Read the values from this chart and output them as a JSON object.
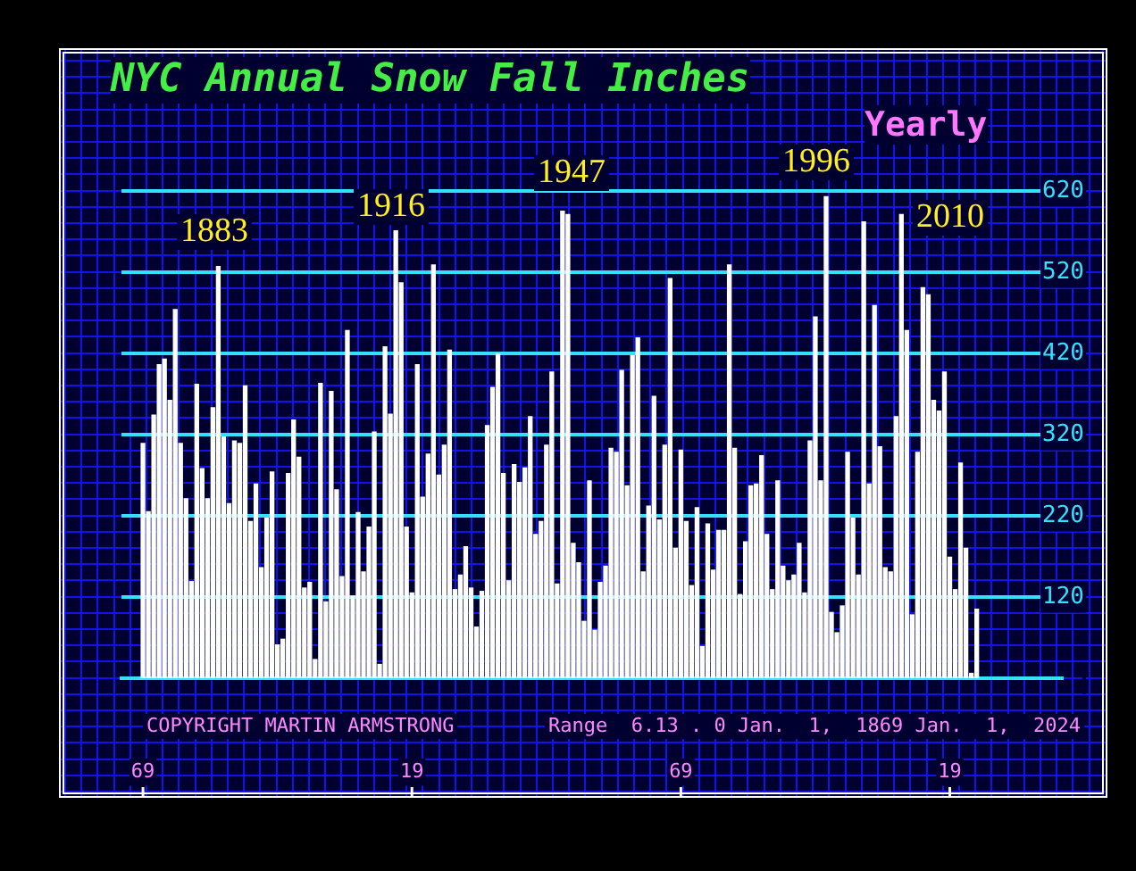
{
  "chart_data": {
    "type": "bar",
    "title": "NYC Annual Snow Fall Inches",
    "subtitle": "Yearly",
    "x": [
      1869,
      1870,
      1871,
      1872,
      1873,
      1874,
      1875,
      1876,
      1877,
      1878,
      1879,
      1880,
      1881,
      1882,
      1883,
      1884,
      1885,
      1886,
      1887,
      1888,
      1889,
      1890,
      1891,
      1892,
      1893,
      1894,
      1895,
      1896,
      1897,
      1898,
      1899,
      1900,
      1901,
      1902,
      1903,
      1904,
      1905,
      1906,
      1907,
      1908,
      1909,
      1910,
      1911,
      1912,
      1913,
      1914,
      1915,
      1916,
      1917,
      1918,
      1919,
      1920,
      1921,
      1922,
      1923,
      1924,
      1925,
      1926,
      1927,
      1928,
      1929,
      1930,
      1931,
      1932,
      1933,
      1934,
      1935,
      1936,
      1937,
      1938,
      1939,
      1940,
      1941,
      1942,
      1943,
      1944,
      1945,
      1946,
      1947,
      1948,
      1949,
      1950,
      1951,
      1952,
      1953,
      1954,
      1955,
      1956,
      1957,
      1958,
      1959,
      1960,
      1961,
      1962,
      1963,
      1964,
      1965,
      1966,
      1967,
      1968,
      1969,
      1970,
      1971,
      1972,
      1973,
      1974,
      1975,
      1976,
      1977,
      1978,
      1979,
      1980,
      1981,
      1982,
      1983,
      1984,
      1985,
      1986,
      1987,
      1988,
      1989,
      1990,
      1991,
      1992,
      1993,
      1994,
      1995,
      1996,
      1997,
      1998,
      1999,
      2000,
      2001,
      2002,
      2003,
      2004,
      2005,
      2006,
      2007,
      2008,
      2009,
      2010,
      2011,
      2012,
      2013,
      2014,
      2015,
      2016,
      2017,
      2018,
      2019,
      2020,
      2021,
      2022,
      2023,
      2024
    ],
    "series": [
      {
        "color": "#ffffff",
        "values": [
          309,
          225,
          344,
          406,
          413,
          362,
          474,
          309,
          241,
          139,
          382,
          278,
          241,
          353,
          527,
          317,
          235,
          312,
          309,
          380,
          213,
          259,
          156,
          217,
          274,
          61,
          68,
          272,
          338,
          292,
          131,
          138,
          43,
          383,
          114,
          373,
          252,
          145,
          448,
          121,
          224,
          151,
          206,
          323,
          37,
          428,
          345,
          571,
          507,
          206,
          125,
          406,
          243,
          296,
          529,
          270,
          307,
          424,
          129,
          147,
          182,
          131,
          83,
          127,
          331,
          378,
          419,
          272,
          140,
          283,
          261,
          279,
          342,
          197,
          213,
          307,
          397,
          136,
          595,
          591,
          186,
          162,
          90,
          263,
          79,
          138,
          158,
          303,
          298,
          399,
          257,
          417,
          439,
          151,
          232,
          367,
          215,
          307,
          512,
          180,
          301,
          213,
          134,
          230,
          59,
          210,
          153,
          202,
          202,
          529,
          303,
          123,
          188,
          257,
          259,
          294,
          197,
          129,
          263,
          158,
          140,
          147,
          186,
          125,
          312,
          465,
          263,
          613,
          101,
          76,
          109,
          298,
          217,
          147,
          582,
          259,
          479,
          305,
          156,
          151,
          342,
          591,
          448,
          98,
          298,
          501,
          492,
          362,
          349,
          397,
          169,
          129,
          285,
          180,
          26,
          105
        ]
      }
    ],
    "xlim": [
      1865,
      2040
    ],
    "xticks": [
      {
        "value": 1869,
        "label": "69"
      },
      {
        "value": 1919,
        "label": "19"
      },
      {
        "value": 1969,
        "label": "69"
      },
      {
        "value": 2019,
        "label": "19"
      }
    ],
    "ylim": [
      20,
      620
    ],
    "yticks": [
      {
        "value": 20,
        "label": null
      },
      120,
      220,
      320,
      420,
      520,
      620
    ],
    "grid": "y",
    "annotations": [
      "1883",
      "1916",
      "1947",
      "1996",
      "2010",
      "COPYRIGHT MARTIN ARMSTRONG",
      "Range  6.13 . 0 Jan.  1,  1869 Jan.  1,  2024"
    ]
  }
}
